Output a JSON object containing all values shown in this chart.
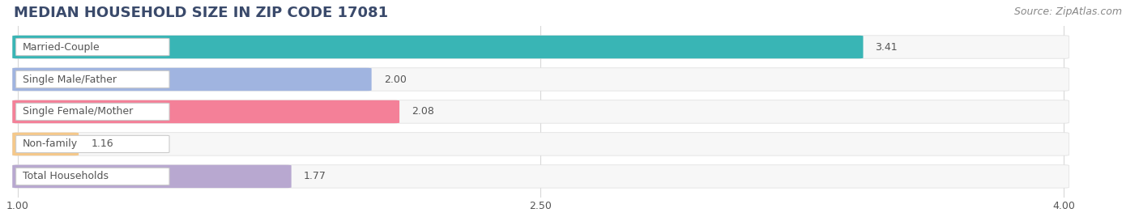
{
  "title": "MEDIAN HOUSEHOLD SIZE IN ZIP CODE 17081",
  "source": "Source: ZipAtlas.com",
  "categories": [
    "Married-Couple",
    "Single Male/Father",
    "Single Female/Mother",
    "Non-family",
    "Total Households"
  ],
  "values": [
    3.41,
    2.0,
    2.08,
    1.16,
    1.77
  ],
  "bar_colors": [
    "#39b5b5",
    "#a0b4e0",
    "#f48098",
    "#f5c88a",
    "#b8a8d0"
  ],
  "xlim_data": [
    1.0,
    4.0
  ],
  "xticks": [
    1.0,
    2.5,
    4.0
  ],
  "xtick_labels": [
    "1.00",
    "2.50",
    "4.00"
  ],
  "background_color": "#ffffff",
  "bar_bg_color": "#f0f0f0",
  "title_fontsize": 13,
  "label_fontsize": 9,
  "value_fontsize": 9,
  "source_fontsize": 9,
  "title_color": "#3a4a6b",
  "label_color": "#555555",
  "value_color": "#555555",
  "source_color": "#888888"
}
